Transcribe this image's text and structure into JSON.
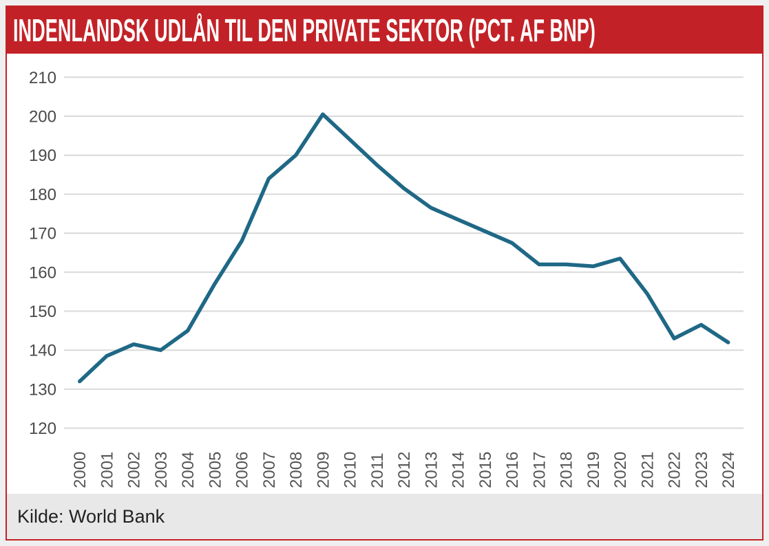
{
  "page": {
    "title": "INDENLANDSK UDLÅN TIL DEN PRIVATE SEKTOR (PCT. AF BNP)",
    "source": "Kilde: World Bank"
  },
  "colors": {
    "frame_border": "#C22227",
    "header_bg": "#C22227",
    "title_text": "#FFFFFF",
    "footer_bg": "#E8E8E8",
    "footer_text": "#222222",
    "line": "#1F6886",
    "grid": "#D9D9D9",
    "ytick_text": "#4A4A4A",
    "xtick_text": "#555555",
    "page_bg": "#EFEFEF"
  },
  "chart_data": {
    "type": "line",
    "title": "INDENLANDSK UDLÅN TIL DEN PRIVATE SEKTOR (PCT. AF BNP)",
    "xlabel": "",
    "ylabel": "",
    "source": "Kilde: World Bank",
    "legend_position": "none",
    "grid": true,
    "ylim": [
      120,
      210
    ],
    "ytick_step": 10,
    "yticks": [
      210,
      200,
      190,
      180,
      170,
      160,
      150,
      140,
      130,
      120
    ],
    "categories": [
      "2000",
      "2001",
      "2002",
      "2003",
      "2004",
      "2005",
      "2006",
      "2007",
      "2008",
      "2009",
      "2010",
      "2011",
      "2012",
      "2013",
      "2014",
      "2015",
      "2016",
      "2017",
      "2018",
      "2019",
      "2020",
      "2021",
      "2022",
      "2023",
      "2024"
    ],
    "series": [
      {
        "name": "Indenlandsk udlån til den private sektor (pct. af BNP)",
        "values": [
          132,
          138.5,
          141.5,
          140,
          145,
          157,
          168,
          184,
          190,
          200.5,
          194,
          187.5,
          181.5,
          176.5,
          173.5,
          170.5,
          167.5,
          162,
          162,
          161.5,
          163.5,
          154.5,
          143,
          146.5,
          142
        ]
      }
    ]
  }
}
